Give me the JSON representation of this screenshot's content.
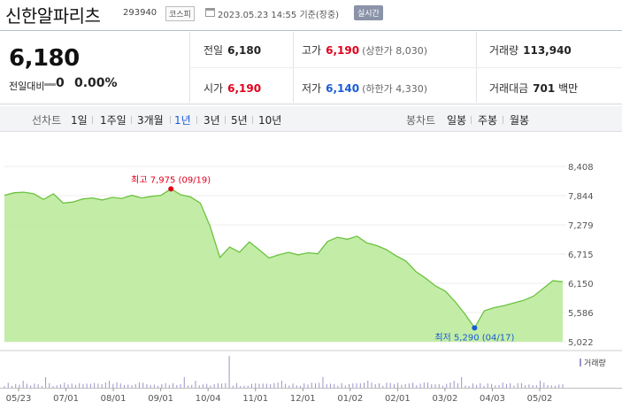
{
  "header": {
    "name": "신한알파리츠",
    "code": "293940",
    "market_badge": "코스피",
    "timestamp": "2023.05.23 14:55",
    "basis": "기준(장중)",
    "realtime_badge": "실시간"
  },
  "quote": {
    "price": "6,180",
    "change_label": "전일대비",
    "change_value": "0",
    "change_pct": "0.00%"
  },
  "stats": {
    "prev_close": {
      "label": "전일",
      "value": "6,180"
    },
    "high": {
      "label": "고가",
      "value": "6,190",
      "sub": "(상한가 8,030)"
    },
    "volume": {
      "label": "거래량",
      "value": "113,940"
    },
    "open": {
      "label": "시가",
      "value": "6,190"
    },
    "low": {
      "label": "저가",
      "value": "6,140",
      "sub": "(하한가 4,330)"
    },
    "trade_value": {
      "label": "거래대금",
      "value": "701",
      "unit": "백만"
    }
  },
  "line_tabs": {
    "label": "선차트",
    "items": [
      {
        "label": "1일",
        "selected": false
      },
      {
        "label": "1주일",
        "selected": false
      },
      {
        "label": "3개월",
        "selected": false
      },
      {
        "label": "1년",
        "selected": true
      },
      {
        "label": "3년",
        "selected": false
      },
      {
        "label": "5년",
        "selected": false
      },
      {
        "label": "10년",
        "selected": false
      }
    ]
  },
  "candle_tabs": {
    "label": "봉차트",
    "items": [
      {
        "label": "일봉"
      },
      {
        "label": "주봉"
      },
      {
        "label": "월봉"
      }
    ]
  },
  "colors": {
    "up": "#e0001b",
    "down": "#1a5bd6",
    "area_fill": "#b8ea98",
    "line": "#6cc23f",
    "volume_bar": "#9c94c8"
  },
  "chart_data": {
    "type": "area",
    "y_ticks": [
      "8,408",
      "7,844",
      "7,279",
      "6,715",
      "6,150",
      "5,586",
      "5,022"
    ],
    "ylim": [
      5022,
      8408
    ],
    "x_ticks": [
      "05/23",
      "07/01",
      "08/01",
      "09/01",
      "10/04",
      "11/01",
      "12/01",
      "01/02",
      "02/01",
      "03/02",
      "04/03",
      "05/02"
    ],
    "max_annotation": {
      "text": "최고 7,975 (09/19)",
      "value": 7975,
      "index": 17
    },
    "min_annotation": {
      "text": "최저 5,290 (04/17)",
      "value": 5290,
      "index": 48
    },
    "volume_legend": "거래량",
    "values": [
      7850,
      7900,
      7910,
      7880,
      7770,
      7880,
      7700,
      7720,
      7780,
      7800,
      7760,
      7810,
      7790,
      7850,
      7800,
      7830,
      7850,
      7975,
      7860,
      7820,
      7700,
      7250,
      6650,
      6850,
      6750,
      6950,
      6800,
      6640,
      6700,
      6750,
      6700,
      6740,
      6720,
      6960,
      7040,
      7000,
      7060,
      6930,
      6880,
      6800,
      6680,
      6580,
      6380,
      6250,
      6100,
      6000,
      5800,
      5560,
      5290,
      5620,
      5680,
      5720,
      5770,
      5820,
      5900,
      6050,
      6200,
      6180
    ]
  }
}
